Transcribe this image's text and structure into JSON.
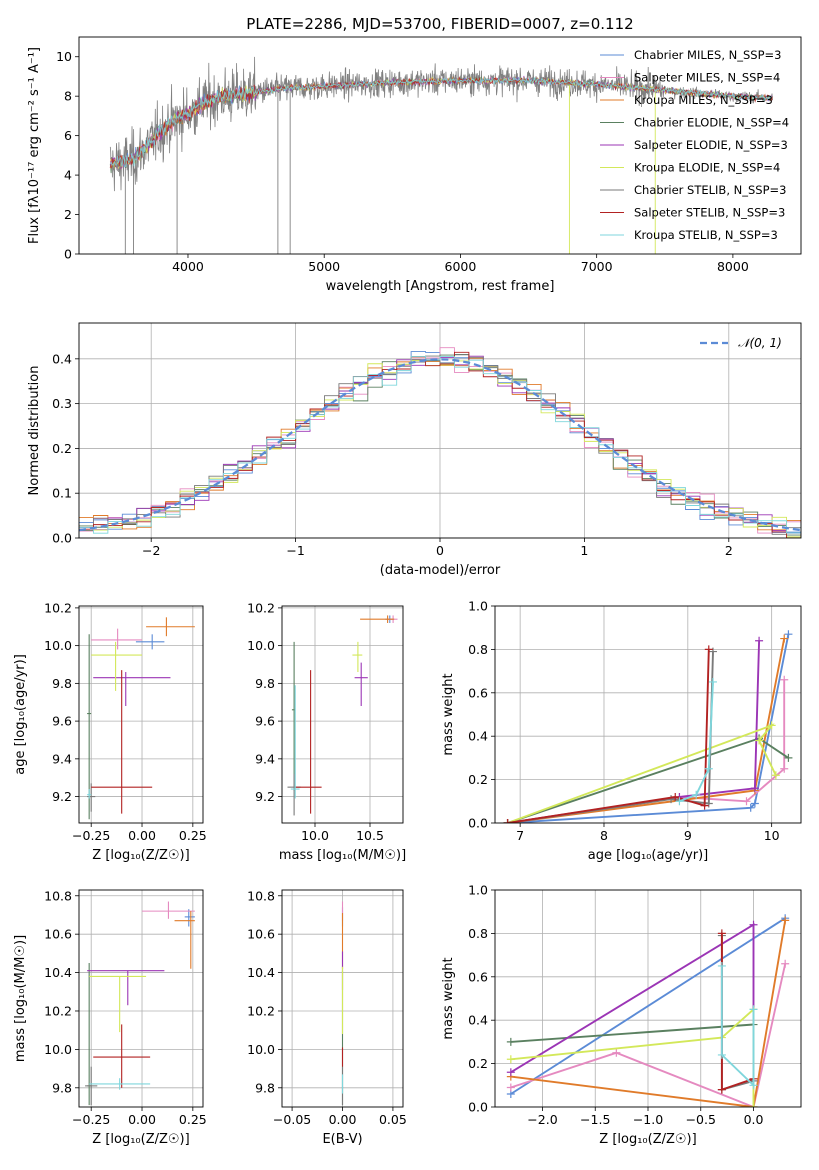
{
  "figure": {
    "title": "PLATE=2286, MJD=53700, FIBERID=0007, z=0.112"
  },
  "colors": {
    "models": [
      "#5b8bd6",
      "#e58ac0",
      "#e07b2a",
      "#5a8060",
      "#9b35b5",
      "#d3e85a",
      "#7a7a7a",
      "#b22222",
      "#7fd6dc"
    ],
    "observed": "#808080",
    "normal_curve": "#5b8bd6",
    "grid": "#b0b0b0"
  },
  "chart_data": [
    {
      "id": "spectrum",
      "type": "line",
      "xlabel": "wavelength [Angstrom, rest frame]",
      "ylabel": "Flux [fλ10⁻¹⁷ erg cm⁻² s⁻¹ A⁻¹]",
      "xlim": [
        3200,
        8500
      ],
      "ylim": [
        0,
        11
      ],
      "xticks": [
        4000,
        5000,
        6000,
        7000,
        8000
      ],
      "yticks": [
        0,
        2,
        4,
        6,
        8,
        10
      ],
      "grid": false,
      "legend_position": "top-right",
      "data_range_angstrom": [
        3430,
        8290
      ],
      "continuum": {
        "x": [
          3430,
          3600,
          3700,
          3800,
          3900,
          4000,
          4100,
          4200,
          4300,
          4400,
          4500,
          4700,
          5000,
          5500,
          6000,
          6500,
          7000,
          7500,
          8000,
          8290
        ],
        "y": [
          4.5,
          4.8,
          5.5,
          6.2,
          6.8,
          7.1,
          7.6,
          7.9,
          8.0,
          8.1,
          8.2,
          8.4,
          8.5,
          8.7,
          8.8,
          8.8,
          8.6,
          8.3,
          8.0,
          7.9
        ]
      },
      "series": [
        {
          "name": "Chabrier MILES, N_SSP=3"
        },
        {
          "name": "Salpeter MILES, N_SSP=4"
        },
        {
          "name": "Kroupa MILES, N_SSP=3"
        },
        {
          "name": "Chabrier ELODIE, N_SSP=4"
        },
        {
          "name": "Salpeter ELODIE, N_SSP=3"
        },
        {
          "name": "Kroupa ELODIE, N_SSP=4"
        },
        {
          "name": "Chabrier STELIB, N_SSP=3"
        },
        {
          "name": "Salpeter STELIB, N_SSP=3"
        },
        {
          "name": "Kroupa STELIB, N_SSP=3"
        }
      ]
    },
    {
      "id": "residuals",
      "type": "bar",
      "xlabel": "(data-model)/error",
      "ylabel": "Normed distribution",
      "xlim": [
        -2.5,
        2.5
      ],
      "ylim": [
        0,
        0.48
      ],
      "xticks": [
        -2,
        -1,
        0,
        1,
        2
      ],
      "yticks": [
        0.0,
        0.1,
        0.2,
        0.3,
        0.4
      ],
      "grid": true,
      "bin_width": 0.1,
      "legend_position": "top-right",
      "reference_curve": {
        "name": "𝒩(0, 1)",
        "mean": 0,
        "sigma": 1
      }
    },
    {
      "id": "age-vs-Z",
      "type": "scatter",
      "xlabel": "Z [log₁₀(Z/Z☉)]",
      "ylabel": "age  [log₁₀(age/yr)]",
      "xlim": [
        -0.31,
        0.3
      ],
      "ylim": [
        9.06,
        10.21
      ],
      "xticks": [
        -0.25,
        0,
        0.25
      ],
      "xticklabels": [
        "−0.25",
        "0.00",
        "0.25"
      ],
      "yticks": [
        9.2,
        9.4,
        9.6,
        9.8,
        10.0,
        10.2
      ],
      "grid": true,
      "points": [
        {
          "x": 0.05,
          "y": 10.02,
          "xerr": [
            0.08,
            0.06
          ],
          "yerr": [
            0.04,
            0.04
          ]
        },
        {
          "x": -0.12,
          "y": 10.03,
          "xerr": [
            0.13,
            0.12
          ],
          "yerr": [
            0.05,
            0.06
          ]
        },
        {
          "x": 0.12,
          "y": 10.1,
          "xerr": [
            0.1,
            0.14
          ],
          "yerr": [
            0.05,
            0.05
          ]
        },
        {
          "x": -0.26,
          "y": 9.64,
          "xerr": [
            0.01,
            0.01
          ],
          "yerr": [
            0.56,
            0.42
          ]
        },
        {
          "x": -0.08,
          "y": 9.83,
          "xerr": [
            0.16,
            0.22
          ],
          "yerr": [
            0.15,
            0.03
          ]
        },
        {
          "x": -0.13,
          "y": 9.95,
          "xerr": [
            0.12,
            0.13
          ],
          "yerr": [
            0.19,
            0.07
          ]
        },
        {
          "x": -0.25,
          "y": 9.2,
          "xerr": [
            0.02,
            0.02
          ],
          "yerr": [
            0.08,
            0.07
          ]
        },
        {
          "x": -0.1,
          "y": 9.25,
          "xerr": [
            0.15,
            0.15
          ],
          "yerr": [
            0.14,
            0.62
          ]
        },
        {
          "x": -0.26,
          "y": 9.21,
          "xerr": [
            0.01,
            0.01
          ],
          "yerr": [
            0.02,
            0.03
          ]
        }
      ]
    },
    {
      "id": "age-vs-mass",
      "type": "scatter",
      "xlabel": "mass [log₁₀(M/M☉)]",
      "ylabel": "",
      "xlim": [
        9.7,
        10.8
      ],
      "ylim": [
        9.06,
        10.21
      ],
      "xticks": [
        10.0,
        10.5
      ],
      "xticklabels": [
        "10.0",
        "10.5"
      ],
      "yticks": [
        9.2,
        9.4,
        9.6,
        9.8,
        10.0,
        10.2
      ],
      "grid": true,
      "points": [
        {
          "x": 10.68,
          "y": 10.14,
          "xerr": [
            0.04,
            0.03
          ],
          "yerr": [
            0.02,
            0.02
          ]
        },
        {
          "x": 10.71,
          "y": 10.14,
          "xerr": [
            0.05,
            0.04
          ],
          "yerr": [
            0.02,
            0.02
          ]
        },
        {
          "x": 10.66,
          "y": 10.14,
          "xerr": [
            0.25,
            0.06
          ],
          "yerr": [
            0.02,
            0.02
          ]
        },
        {
          "x": 9.81,
          "y": 9.66,
          "xerr": [
            0.02,
            0.01
          ],
          "yerr": [
            0.43,
            0.36
          ]
        },
        {
          "x": 10.42,
          "y": 9.83,
          "xerr": [
            0.06,
            0.06
          ],
          "yerr": [
            0.15,
            0.08
          ]
        },
        {
          "x": 10.39,
          "y": 9.95,
          "xerr": [
            0.05,
            0.04
          ],
          "yerr": [
            0.09,
            0.07
          ]
        },
        {
          "x": 9.81,
          "y": 9.25,
          "xerr": [
            0.06,
            0.06
          ],
          "yerr": [
            0.15,
            0.07
          ]
        },
        {
          "x": 9.96,
          "y": 9.25,
          "xerr": [
            0.14,
            0.1
          ],
          "yerr": [
            0.14,
            0.62
          ]
        },
        {
          "x": 9.82,
          "y": 9.24,
          "xerr": [
            0.04,
            0.04
          ],
          "yerr": [
            0.05,
            0.55
          ]
        }
      ]
    },
    {
      "id": "weight-vs-age",
      "type": "line",
      "xlabel": "age  [log₁₀(age/yr)]",
      "ylabel": "mass weight",
      "xlim": [
        6.7,
        10.35
      ],
      "ylim": [
        0,
        1
      ],
      "xticks": [
        7,
        8,
        9,
        10
      ],
      "yticks": [
        0.0,
        0.2,
        0.4,
        0.6,
        0.8,
        1.0
      ],
      "grid": true,
      "series": [
        {
          "x": [
            6.85,
            9.75,
            9.8,
            10.2
          ],
          "y": [
            0.0,
            0.07,
            0.09,
            0.87
          ]
        },
        {
          "x": [
            6.85,
            8.9,
            9.7,
            10.15,
            10.15
          ],
          "y": [
            0.0,
            0.12,
            0.1,
            0.25,
            0.66
          ]
        },
        {
          "x": [
            6.85,
            9.8,
            10.15
          ],
          "y": [
            0.0,
            0.15,
            0.85
          ]
        },
        {
          "x": [
            6.85,
            9.85,
            10.2
          ],
          "y": [
            0.0,
            0.39,
            0.3
          ]
        },
        {
          "x": [
            6.85,
            8.9,
            9.8,
            9.85
          ],
          "y": [
            0.0,
            0.12,
            0.16,
            0.84
          ]
        },
        {
          "x": [
            6.85,
            10.0,
            9.85,
            10.05
          ],
          "y": [
            0.0,
            0.45,
            0.38,
            0.22
          ]
        },
        {
          "x": [
            6.85,
            8.8,
            9.25,
            9.3
          ],
          "y": [
            0.0,
            0.11,
            0.09,
            0.79
          ]
        },
        {
          "x": [
            6.85,
            8.85,
            9.2,
            9.25
          ],
          "y": [
            0.0,
            0.12,
            0.08,
            0.8
          ]
        },
        {
          "x": [
            8.9,
            9.1,
            9.25,
            9.3
          ],
          "y": [
            0.1,
            0.13,
            0.25,
            0.65
          ]
        }
      ]
    },
    {
      "id": "mass-vs-Z",
      "type": "scatter",
      "xlabel": "Z [log₁₀(Z/Z☉)]",
      "ylabel": "mass [log₁₀(M/M☉)]",
      "xlim": [
        -0.31,
        0.3
      ],
      "ylim": [
        9.7,
        10.83
      ],
      "xticks": [
        -0.25,
        0,
        0.25
      ],
      "xticklabels": [
        "−0.25",
        "0.00",
        "0.25"
      ],
      "yticks": [
        9.8,
        10.0,
        10.2,
        10.4,
        10.6,
        10.8
      ],
      "grid": true,
      "points": [
        {
          "x": 0.23,
          "y": 10.69,
          "xerr": [
            0.02,
            0.03
          ],
          "yerr": [
            0.05,
            0.04
          ]
        },
        {
          "x": 0.13,
          "y": 10.72,
          "xerr": [
            0.13,
            0.13
          ],
          "yerr": [
            0.04,
            0.05
          ]
        },
        {
          "x": 0.24,
          "y": 10.67,
          "xerr": [
            0.08,
            0.02
          ],
          "yerr": [
            0.25,
            0.05
          ]
        },
        {
          "x": -0.26,
          "y": 9.81,
          "xerr": [
            0.01,
            0.01
          ],
          "yerr": [
            0.1,
            0.64
          ]
        },
        {
          "x": -0.07,
          "y": 10.41,
          "xerr": [
            0.2,
            0.18
          ],
          "yerr": [
            0.18,
            0.0
          ]
        },
        {
          "x": -0.11,
          "y": 10.38,
          "xerr": [
            0.15,
            0.13
          ],
          "yerr": [
            0.29,
            0.0
          ]
        },
        {
          "x": -0.25,
          "y": 9.81,
          "xerr": [
            0.03,
            0.03
          ],
          "yerr": [
            0.1,
            0.1
          ]
        },
        {
          "x": -0.1,
          "y": 9.96,
          "xerr": [
            0.14,
            0.14
          ],
          "yerr": [
            0.16,
            0.17
          ]
        },
        {
          "x": -0.11,
          "y": 9.82,
          "xerr": [
            0.15,
            0.15
          ],
          "yerr": [
            0.03,
            0.03
          ]
        }
      ]
    },
    {
      "id": "mass-vs-EBV",
      "type": "scatter",
      "xlabel": "E(B-V)",
      "ylabel": "",
      "xlim": [
        -0.06,
        0.06
      ],
      "ylim": [
        9.7,
        10.83
      ],
      "xticks": [
        -0.05,
        0,
        0.05
      ],
      "xticklabels": [
        "−0.05",
        "0.00",
        "0.05"
      ],
      "yticks": [
        9.8,
        10.0,
        10.2,
        10.4,
        10.6,
        10.8
      ],
      "grid": true,
      "points": [
        {
          "x": 0.0,
          "y": 10.69,
          "xerr": [
            0,
            0
          ],
          "yerr": [
            0.05,
            0.05
          ]
        },
        {
          "x": 0.0,
          "y": 10.72,
          "xerr": [
            0,
            0
          ],
          "yerr": [
            0.05,
            0.05
          ]
        },
        {
          "x": 0.0,
          "y": 10.67,
          "xerr": [
            0,
            0
          ],
          "yerr": [
            0.25,
            0.04
          ]
        },
        {
          "x": 0.0,
          "y": 9.81,
          "xerr": [
            0,
            0
          ],
          "yerr": [
            0.1,
            0.6
          ]
        },
        {
          "x": 0.0,
          "y": 10.41,
          "xerr": [
            0,
            0
          ],
          "yerr": [
            0.1,
            0.1
          ]
        },
        {
          "x": 0.0,
          "y": 10.38,
          "xerr": [
            0,
            0
          ],
          "yerr": [
            0.3,
            0.05
          ]
        },
        {
          "x": 0.0,
          "y": 9.81,
          "xerr": [
            0,
            0
          ],
          "yerr": [
            0.1,
            0.1
          ]
        },
        {
          "x": 0.0,
          "y": 9.96,
          "xerr": [
            0,
            0
          ],
          "yerr": [
            0.05,
            0.05
          ]
        },
        {
          "x": 0.0,
          "y": 9.82,
          "xerr": [
            0,
            0
          ],
          "yerr": [
            0.05,
            0.05
          ]
        }
      ]
    },
    {
      "id": "weight-vs-Z",
      "type": "line",
      "xlabel": "Z [log₁₀(Z/Z☉)]",
      "ylabel": "mass weight",
      "xlim": [
        -2.45,
        0.45
      ],
      "ylim": [
        0,
        1
      ],
      "xticks": [
        -2.0,
        -1.5,
        -1.0,
        -0.5,
        0.0
      ],
      "xticklabels": [
        "−2.0",
        "−1.5",
        "−1.0",
        "−0.5",
        "0.0"
      ],
      "yticks": [
        0.0,
        0.2,
        0.4,
        0.6,
        0.8,
        1.0
      ],
      "grid": true,
      "series": [
        {
          "x": [
            -2.3,
            0.3
          ],
          "y": [
            0.06,
            0.87
          ]
        },
        {
          "x": [
            -2.3,
            -1.3,
            0.0,
            0.3
          ],
          "y": [
            0.09,
            0.25,
            0.0,
            0.66
          ]
        },
        {
          "x": [
            -2.3,
            0.0,
            0.3
          ],
          "y": [
            0.14,
            0.0,
            0.86
          ]
        },
        {
          "x": [
            -2.3,
            0.0
          ],
          "y": [
            0.3,
            0.38
          ]
        },
        {
          "x": [
            -2.3,
            0.0,
            0.0
          ],
          "y": [
            0.16,
            0.84,
            0.12
          ]
        },
        {
          "x": [
            -2.3,
            -0.3,
            0.0,
            0.0
          ],
          "y": [
            0.22,
            0.32,
            0.45,
            0.0
          ]
        },
        {
          "x": [
            -0.3,
            -0.3,
            0.0
          ],
          "y": [
            0.79,
            0.08,
            0.12
          ]
        },
        {
          "x": [
            -0.3,
            -0.3,
            0.0
          ],
          "y": [
            0.8,
            0.08,
            0.13
          ]
        },
        {
          "x": [
            -0.3,
            -0.3,
            0.0,
            0.0
          ],
          "y": [
            0.65,
            0.24,
            0.1,
            0.45
          ]
        }
      ]
    }
  ]
}
